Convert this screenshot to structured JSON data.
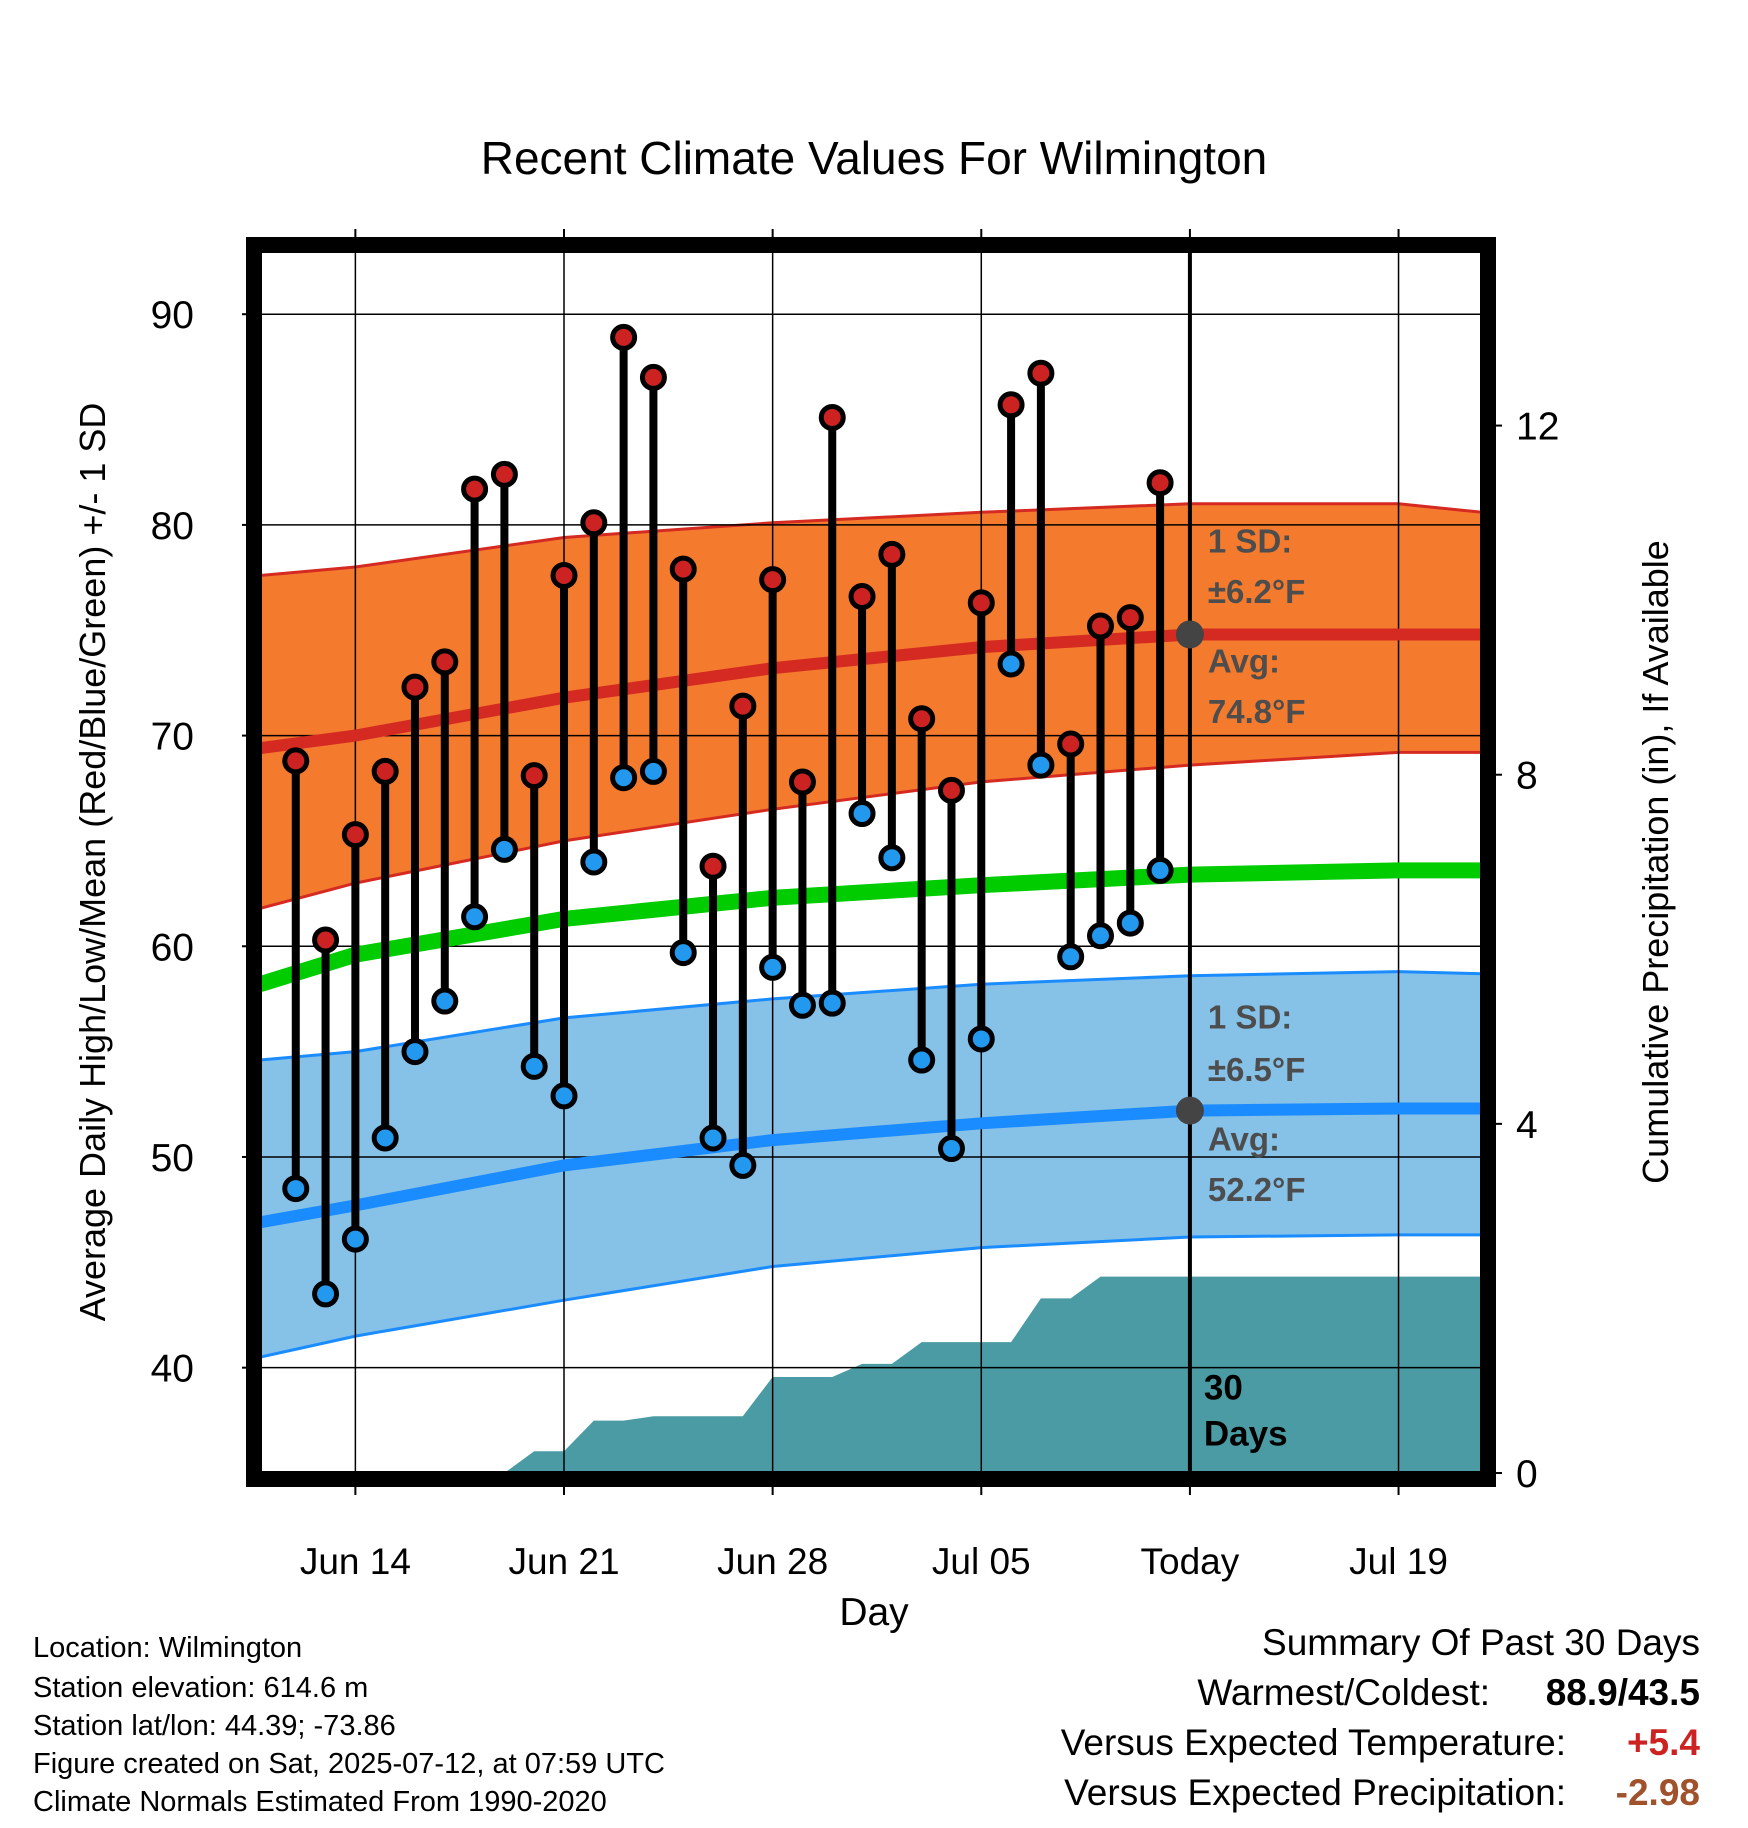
{
  "chart_data": {
    "type": "line",
    "title": "Recent Climate Values For Wilmington",
    "xlabel": "Day",
    "ylabel": "Average Daily High/Low/Mean (Red/Blue/Green) +/- 1 SD",
    "y2label": "Cumulative Precipitation (in), If Available",
    "ylim": [
      35,
      93
    ],
    "y2lim": [
      0,
      14
    ],
    "y_ticks": [
      "40",
      "50",
      "60",
      "70",
      "80",
      "90"
    ],
    "y2_ticks": [
      "0",
      "4",
      "8",
      "12"
    ],
    "x_tick_labels": [
      "Jun 14",
      "Jun 21",
      "Jun 28",
      "Jul 05",
      "Today",
      "Jul 19"
    ],
    "x_tick_days": [
      14,
      21,
      28,
      35,
      42,
      49
    ],
    "x_range_days": [
      10.8,
      51.8
    ],
    "today_day": 42,
    "daily_observations": [
      {
        "day": 12,
        "high": 68.8,
        "low": 48.5
      },
      {
        "day": 13,
        "high": 60.3,
        "low": 43.5
      },
      {
        "day": 14,
        "high": 65.3,
        "low": 46.1
      },
      {
        "day": 15,
        "high": 68.3,
        "low": 50.9
      },
      {
        "day": 16,
        "high": 72.3,
        "low": 55.0
      },
      {
        "day": 17,
        "high": 73.5,
        "low": 57.4
      },
      {
        "day": 18,
        "high": 81.7,
        "low": 61.4
      },
      {
        "day": 19,
        "high": 82.4,
        "low": 64.6
      },
      {
        "day": 20,
        "high": 68.1,
        "low": 54.3
      },
      {
        "day": 21,
        "high": 77.6,
        "low": 52.9
      },
      {
        "day": 22,
        "high": 80.1,
        "low": 64.0
      },
      {
        "day": 23,
        "high": 88.9,
        "low": 68.0
      },
      {
        "day": 24,
        "high": 87.0,
        "low": 68.3
      },
      {
        "day": 25,
        "high": 77.9,
        "low": 59.7
      },
      {
        "day": 26,
        "high": 63.8,
        "low": 50.9
      },
      {
        "day": 27,
        "high": 71.4,
        "low": 49.6
      },
      {
        "day": 28,
        "high": 77.4,
        "low": 59.0
      },
      {
        "day": 29,
        "high": 67.8,
        "low": 57.2
      },
      {
        "day": 30,
        "high": 85.1,
        "low": 57.3
      },
      {
        "day": 31,
        "high": 76.6,
        "low": 66.3
      },
      {
        "day": 32,
        "high": 78.6,
        "low": 64.2
      },
      {
        "day": 33,
        "high": 70.8,
        "low": 54.6
      },
      {
        "day": 34,
        "high": 67.4,
        "low": 50.4
      },
      {
        "day": 35,
        "high": 76.3,
        "low": 55.6
      },
      {
        "day": 36,
        "high": 85.7,
        "low": 73.4
      },
      {
        "day": 37,
        "high": 87.2,
        "low": 68.6
      },
      {
        "day": 38,
        "high": 69.6,
        "low": 59.5
      },
      {
        "day": 39,
        "high": 75.2,
        "low": 60.5
      },
      {
        "day": 40,
        "high": 75.6,
        "low": 61.1
      },
      {
        "day": 41,
        "high": 82.0,
        "low": 63.6
      }
    ],
    "normals": {
      "days": [
        10.8,
        14,
        21,
        28,
        35,
        42,
        49,
        51.8
      ],
      "high_avg": [
        69.4,
        70.0,
        71.8,
        73.2,
        74.2,
        74.8,
        74.8,
        74.8
      ],
      "high_sd_upper": [
        77.6,
        78.0,
        79.4,
        80.1,
        80.6,
        81.0,
        81.0,
        80.6
      ],
      "high_sd_lower": [
        61.8,
        63.0,
        65.0,
        66.5,
        67.8,
        68.6,
        69.2,
        69.2
      ],
      "mean_avg": [
        58.2,
        59.6,
        61.3,
        62.3,
        62.9,
        63.4,
        63.6,
        63.6
      ],
      "low_avg": [
        46.9,
        47.7,
        49.6,
        50.8,
        51.6,
        52.2,
        52.3,
        52.3
      ],
      "low_sd_upper": [
        54.6,
        55.0,
        56.6,
        57.5,
        58.2,
        58.6,
        58.8,
        58.7
      ],
      "low_sd_lower": [
        40.5,
        41.5,
        43.2,
        44.8,
        45.7,
        46.2,
        46.3,
        46.3
      ]
    },
    "cumulative_precipitation": {
      "days": [
        10.8,
        16,
        17,
        18,
        19,
        20,
        21,
        22,
        23,
        24,
        25,
        26,
        27,
        28,
        29,
        30,
        31,
        32,
        33,
        34,
        35,
        36,
        37,
        38,
        39,
        40,
        41,
        42,
        51.8
      ],
      "values": [
        0,
        0,
        0,
        0,
        0,
        0.25,
        0.25,
        0.6,
        0.6,
        0.65,
        0.65,
        0.65,
        0.65,
        1.1,
        1.1,
        1.1,
        1.25,
        1.25,
        1.5,
        1.5,
        1.5,
        1.5,
        2.0,
        2.0,
        2.25,
        2.25,
        2.25,
        2.25,
        2.25
      ]
    },
    "annotations": {
      "high_sd_label": "1 SD:",
      "high_sd_value": "±6.2°F",
      "high_avg_label": "Avg:",
      "high_avg_value": "74.8°F",
      "low_sd_label": "1 SD:",
      "low_sd_value": "±6.5°F",
      "low_avg_label": "Avg:",
      "low_avg_value": "52.2°F",
      "precip_days_line1": "30",
      "precip_days_line2": "Days"
    },
    "colors": {
      "high_band": "#f47a2e",
      "high_line": "#d42a22",
      "low_band": "#86c1e8",
      "low_line": "#1a8cff",
      "mean_line": "#00cc00",
      "precip": "#4a9ba3",
      "high_dot": "#cc2222",
      "low_dot": "#2299ee",
      "today_dot": "#444444"
    }
  },
  "footer": {
    "location": "Location: Wilmington",
    "elevation": "Station elevation: 614.6 m",
    "latlon": "Station lat/lon: 44.39; -73.86",
    "created": "Figure created on Sat, 2025-07-12, at 07:59 UTC",
    "normals": "Climate Normals Estimated From 1990-2020"
  },
  "summary": {
    "title": "Summary Of Past 30 Days",
    "warm_cold_label": "Warmest/Coldest:",
    "warm_cold_value": "88.9/43.5",
    "temp_label": "Versus Expected Temperature:",
    "temp_value": "+5.4",
    "temp_color": "#cc2222",
    "precip_label": "Versus Expected Precipitation:",
    "precip_value": "-2.98",
    "precip_color": "#a0522d"
  }
}
